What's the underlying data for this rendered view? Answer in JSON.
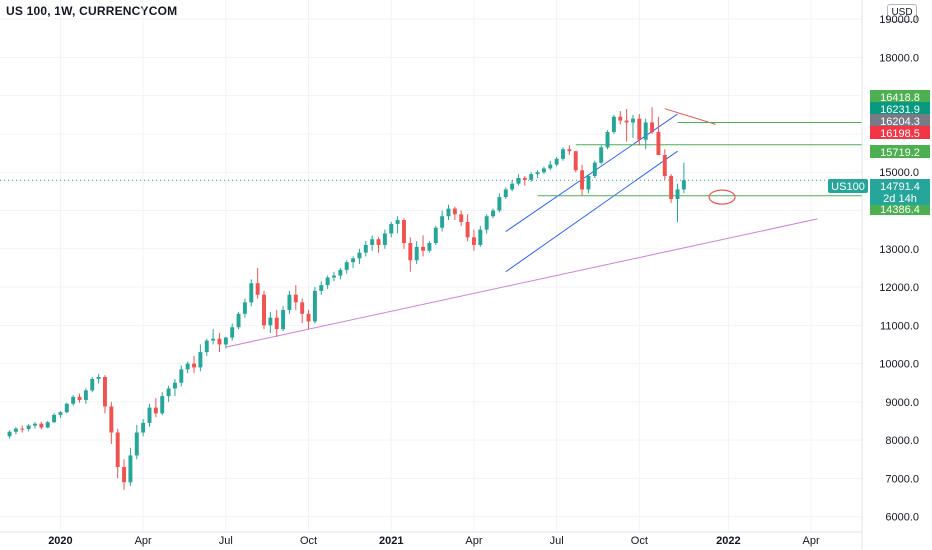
{
  "header": {
    "title": "US 100, 1W, CURRENCYCOM",
    "currency": "USD"
  },
  "colors": {
    "up": "#26a69a",
    "down": "#ef5350",
    "channel": "#2962ff",
    "support": "#4caf50",
    "trend": "#d17edb",
    "highlight": "#ef5350",
    "tag_green": "#4caf50",
    "tag_teal": "#089981",
    "tag_gray": "#787b86",
    "tag_red": "#f23645",
    "current": "#26a69a"
  },
  "chart_data": {
    "type": "candlestick",
    "ylim": [
      5600,
      19500
    ],
    "y_ticks": [
      "19000.0",
      "18000.0",
      "17000.0",
      "16000.0",
      "15000.0",
      "14000.0",
      "13000.0",
      "12000.0",
      "11000.0",
      "10000.0",
      "9000.0",
      "8000.0",
      "7000.0",
      "6000.0"
    ],
    "x_labels": [
      {
        "label": "2020",
        "week": 8,
        "bold": true
      },
      {
        "label": "Apr",
        "week": 21,
        "bold": false
      },
      {
        "label": "Jul",
        "week": 34,
        "bold": false
      },
      {
        "label": "Oct",
        "week": 47,
        "bold": false
      },
      {
        "label": "2021",
        "week": 60,
        "bold": true
      },
      {
        "label": "Apr",
        "week": 73,
        "bold": false
      },
      {
        "label": "Jul",
        "week": 86,
        "bold": false
      },
      {
        "label": "Oct",
        "week": 99,
        "bold": false
      },
      {
        "label": "2022",
        "week": 113,
        "bold": true
      },
      {
        "label": "Apr",
        "week": 126,
        "bold": false
      }
    ],
    "x_range": [
      -1.5,
      134
    ],
    "ohlc": [
      [
        8100,
        8260,
        8040,
        8220
      ],
      [
        8220,
        8340,
        8150,
        8300
      ],
      [
        8300,
        8380,
        8200,
        8290
      ],
      [
        8290,
        8420,
        8230,
        8380
      ],
      [
        8380,
        8470,
        8300,
        8430
      ],
      [
        8430,
        8480,
        8280,
        8330
      ],
      [
        8330,
        8500,
        8310,
        8470
      ],
      [
        8470,
        8700,
        8440,
        8660
      ],
      [
        8660,
        8760,
        8580,
        8730
      ],
      [
        8730,
        8980,
        8700,
        8950
      ],
      [
        8950,
        9180,
        8900,
        9130
      ],
      [
        9130,
        9220,
        8980,
        9050
      ],
      [
        9050,
        9350,
        8950,
        9300
      ],
      [
        9300,
        9650,
        9250,
        9600
      ],
      [
        9600,
        9730,
        9480,
        9650
      ],
      [
        9650,
        9700,
        8700,
        8880
      ],
      [
        8880,
        9000,
        7900,
        8200
      ],
      [
        8200,
        8300,
        7000,
        7300
      ],
      [
        7300,
        7500,
        6700,
        6900
      ],
      [
        6900,
        7800,
        6800,
        7600
      ],
      [
        7600,
        8400,
        7500,
        8200
      ],
      [
        8200,
        8550,
        8100,
        8450
      ],
      [
        8450,
        8950,
        8350,
        8850
      ],
      [
        8850,
        9100,
        8600,
        8700
      ],
      [
        8700,
        9250,
        8650,
        9150
      ],
      [
        9150,
        9420,
        9000,
        9350
      ],
      [
        9350,
        9600,
        9150,
        9500
      ],
      [
        9500,
        9950,
        9400,
        9850
      ],
      [
        9850,
        10050,
        9750,
        10000
      ],
      [
        10000,
        10200,
        9750,
        9900
      ],
      [
        9900,
        10500,
        9800,
        10300
      ],
      [
        10300,
        10650,
        10200,
        10600
      ],
      [
        10600,
        10900,
        10500,
        10650
      ],
      [
        10650,
        10800,
        10300,
        10500
      ],
      [
        10500,
        10700,
        10400,
        10680
      ],
      [
        10680,
        11050,
        10600,
        10950
      ],
      [
        10950,
        11350,
        10900,
        11300
      ],
      [
        11300,
        11700,
        11200,
        11600
      ],
      [
        11600,
        12200,
        11500,
        12100
      ],
      [
        12100,
        12500,
        11700,
        11800
      ],
      [
        11800,
        11900,
        10900,
        11000
      ],
      [
        11000,
        11350,
        10800,
        11200
      ],
      [
        11200,
        11400,
        10700,
        10900
      ],
      [
        10900,
        11500,
        10850,
        11400
      ],
      [
        11400,
        11900,
        11300,
        11800
      ],
      [
        11800,
        12050,
        11400,
        11600
      ],
      [
        11600,
        11700,
        11050,
        11300
      ],
      [
        11300,
        11400,
        10900,
        11100
      ],
      [
        11100,
        12000,
        11050,
        11900
      ],
      [
        11900,
        12150,
        11800,
        12050
      ],
      [
        12050,
        12300,
        11950,
        12250
      ],
      [
        12250,
        12400,
        12150,
        12300
      ],
      [
        12300,
        12500,
        12200,
        12450
      ],
      [
        12450,
        12700,
        12350,
        12650
      ],
      [
        12650,
        12800,
        12500,
        12750
      ],
      [
        12750,
        13000,
        12600,
        12900
      ],
      [
        12900,
        13200,
        12800,
        13100
      ],
      [
        13100,
        13350,
        12950,
        13250
      ],
      [
        13250,
        13300,
        12900,
        13100
      ],
      [
        13100,
        13500,
        13000,
        13400
      ],
      [
        13400,
        13700,
        13300,
        13650
      ],
      [
        13650,
        13850,
        13400,
        13750
      ],
      [
        13750,
        13800,
        13000,
        13150
      ],
      [
        13150,
        13300,
        12400,
        12700
      ],
      [
        12700,
        13200,
        12600,
        13050
      ],
      [
        13050,
        13350,
        12800,
        12950
      ],
      [
        12950,
        13200,
        12900,
        13150
      ],
      [
        13150,
        13600,
        13100,
        13550
      ],
      [
        13550,
        14000,
        13450,
        13850
      ],
      [
        13850,
        14150,
        13750,
        14050
      ],
      [
        14050,
        14100,
        13750,
        13900
      ],
      [
        13900,
        14000,
        13600,
        13700
      ],
      [
        13700,
        13900,
        13200,
        13300
      ],
      [
        13300,
        13500,
        12950,
        13100
      ],
      [
        13100,
        13600,
        13050,
        13500
      ],
      [
        13500,
        13900,
        13400,
        13850
      ],
      [
        13850,
        14050,
        13800,
        14000
      ],
      [
        14000,
        14450,
        13950,
        14350
      ],
      [
        14350,
        14600,
        14300,
        14550
      ],
      [
        14550,
        14800,
        14500,
        14700
      ],
      [
        14700,
        14950,
        14650,
        14850
      ],
      [
        14850,
        14900,
        14650,
        14800
      ],
      [
        14800,
        15000,
        14750,
        14950
      ],
      [
        14950,
        15050,
        14850,
        15000
      ],
      [
        15000,
        15150,
        14950,
        15100
      ],
      [
        15100,
        15300,
        15050,
        15200
      ],
      [
        15200,
        15400,
        15150,
        15350
      ],
      [
        15350,
        15650,
        15300,
        15600
      ],
      [
        15600,
        15700,
        15450,
        15550
      ],
      [
        15550,
        15550,
        15000,
        15050
      ],
      [
        15050,
        15200,
        14400,
        14550
      ],
      [
        14550,
        14950,
        14450,
        14900
      ],
      [
        14900,
        15300,
        14850,
        15250
      ],
      [
        15250,
        15700,
        15200,
        15650
      ],
      [
        15650,
        16100,
        15600,
        16050
      ],
      [
        16050,
        16500,
        16000,
        16450
      ],
      [
        16450,
        16600,
        16250,
        16350
      ],
      [
        16350,
        16650,
        15800,
        16300
      ],
      [
        16300,
        16500,
        15900,
        16400
      ],
      [
        16400,
        16520,
        15700,
        15850
      ],
      [
        15850,
        16400,
        15600,
        16300
      ],
      [
        16300,
        16700,
        16000,
        16050
      ],
      [
        16050,
        16450,
        15500,
        15450
      ],
      [
        15450,
        15600,
        14800,
        14900
      ],
      [
        14900,
        14950,
        14200,
        14300
      ],
      [
        14300,
        14700,
        13700,
        14550
      ],
      [
        14550,
        15250,
        14450,
        14791
      ]
    ],
    "channel": [
      [
        78,
        13450,
        105,
        16520
      ],
      [
        78,
        12400,
        105,
        15550
      ]
    ],
    "resistance_line": [
      103,
      16660,
      111,
      16250
    ],
    "trendline": [
      34,
      10430,
      127,
      13780
    ],
    "support_lines": [
      {
        "value": 16300,
        "from": 105,
        "to": 133
      },
      {
        "value": 15719.2,
        "from": 89,
        "to": 133
      },
      {
        "value": 14386.4,
        "from": 83,
        "to": 133
      }
    ],
    "highlight": {
      "week": 112,
      "value": 14350
    },
    "last_price_line": 14791.4,
    "price_tags": [
      {
        "value": 16418.8,
        "label": "16418.8",
        "color": "tag_green"
      },
      {
        "value": 16231.9,
        "label": "16231.9",
        "color": "tag_teal"
      },
      {
        "value": 16204.3,
        "label": "16204.3",
        "color": "tag_gray"
      },
      {
        "value": 16198.5,
        "label": "16198.5",
        "color": "tag_red"
      },
      {
        "value": 15719.2,
        "label": "15719.2",
        "color": "tag_green"
      },
      {
        "value": 14386.4,
        "label": "14386.4",
        "color": "tag_green"
      }
    ],
    "current": {
      "symbol": "US100",
      "price": "14791.4",
      "countdown": "2d 14h",
      "value": 14791.4
    }
  }
}
